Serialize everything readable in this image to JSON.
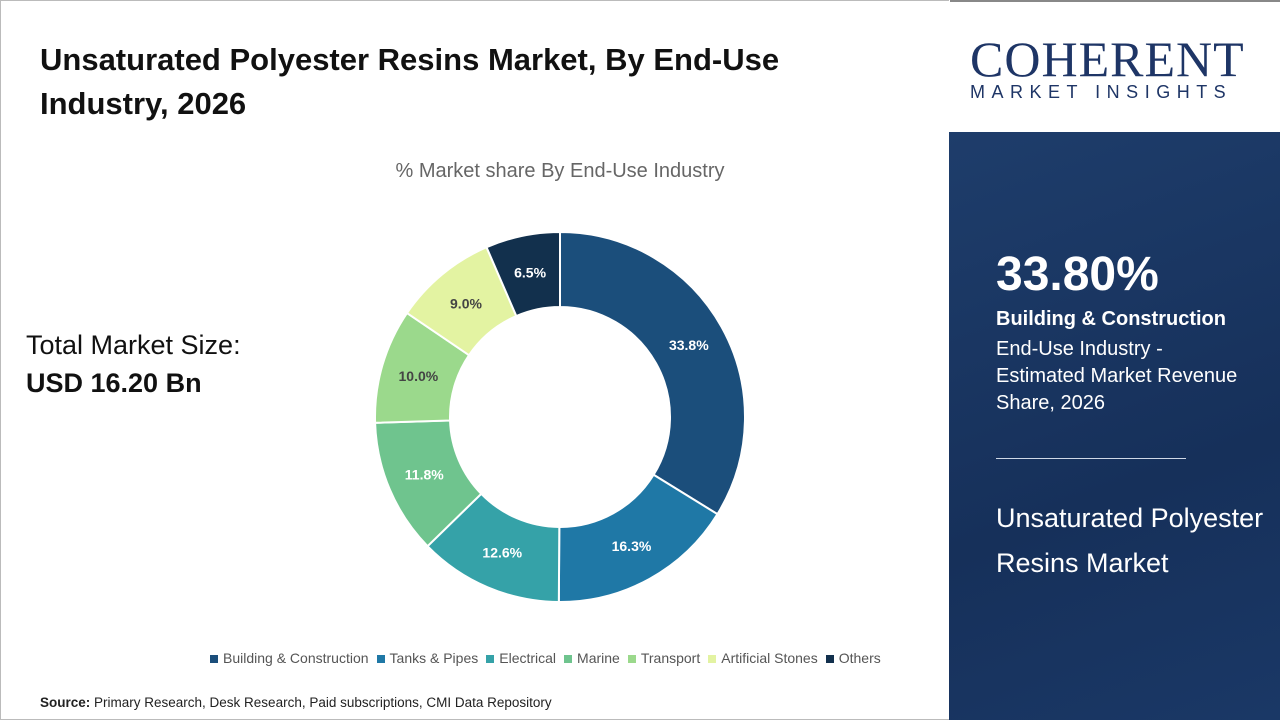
{
  "title": "Unsaturated Polyester Resins Market, By End-Use Industry, 2026",
  "total": {
    "label": "Total Market Size:",
    "value": "USD 16.20 Bn"
  },
  "source": {
    "label": "Source:",
    "text": " Primary Research, Desk Research, Paid subscriptions, CMI Data Repository"
  },
  "logo": {
    "main": "COHERENT",
    "sub": "MARKET INSIGHTS"
  },
  "side": {
    "percent": "33.80%",
    "segment": "Building & Construction",
    "description": "End-Use Industry - Estimated Market Revenue Share, 2026",
    "market": "Unsaturated Polyester Resins Market"
  },
  "chart_data": {
    "type": "pie",
    "donut": true,
    "title": "% Market share By End-Use Industry",
    "legend_position": "bottom",
    "categories": [
      "Building & Construction",
      "Tanks & Pipes",
      "Electrical",
      "Marine",
      "Transport",
      "Artificial Stones",
      "Others"
    ],
    "values": [
      33.8,
      16.3,
      12.6,
      11.8,
      10.0,
      9.0,
      6.5
    ],
    "labels": [
      "33.8%",
      "16.3%",
      "12.6%",
      "11.8%",
      "10.0%",
      "9.0%",
      "6.5%"
    ],
    "colors": [
      "#1b4e7b",
      "#1f78a6",
      "#35a2a8",
      "#6fc48e",
      "#9bd98c",
      "#e3f3a2",
      "#12304d"
    ]
  }
}
